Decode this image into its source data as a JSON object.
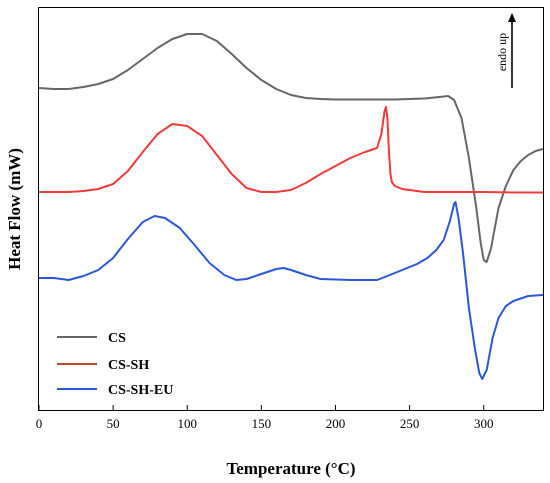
{
  "chart_data": {
    "type": "line",
    "title": "",
    "xlabel": "Temperature (°C)",
    "ylabel": "Heat Flow (mW)",
    "xlim": [
      0,
      340
    ],
    "xticks": [
      0,
      50,
      100,
      150,
      200,
      250,
      300
    ],
    "y_tick_labels_shown": false,
    "grid": false,
    "legend_position": "bottom-left",
    "annotation": "endo up",
    "series": [
      {
        "name": "CS",
        "color": "#666666",
        "points": [
          [
            0,
            80
          ],
          [
            10,
            81
          ],
          [
            20,
            81
          ],
          [
            30,
            79
          ],
          [
            40,
            76
          ],
          [
            50,
            71
          ],
          [
            60,
            62
          ],
          [
            70,
            51
          ],
          [
            80,
            40
          ],
          [
            90,
            31
          ],
          [
            100,
            26
          ],
          [
            110,
            26
          ],
          [
            120,
            33
          ],
          [
            130,
            46
          ],
          [
            140,
            60
          ],
          [
            150,
            72
          ],
          [
            160,
            81
          ],
          [
            170,
            87
          ],
          [
            180,
            90
          ],
          [
            190,
            91
          ],
          [
            200,
            91.5
          ],
          [
            220,
            91.5
          ],
          [
            240,
            91.5
          ],
          [
            260,
            90.5
          ],
          [
            270,
            89
          ],
          [
            276,
            88
          ],
          [
            280,
            92
          ],
          [
            285,
            110
          ],
          [
            290,
            150
          ],
          [
            295,
            200
          ],
          [
            298,
            235
          ],
          [
            300,
            252
          ],
          [
            302,
            254
          ],
          [
            305,
            240
          ],
          [
            310,
            200
          ],
          [
            315,
            178
          ],
          [
            320,
            162
          ],
          [
            325,
            153
          ],
          [
            330,
            147
          ],
          [
            335,
            143
          ],
          [
            340,
            141
          ]
        ]
      },
      {
        "name": "CS-SH",
        "color": "#ef3b3b",
        "points": [
          [
            0,
            184
          ],
          [
            10,
            184
          ],
          [
            20,
            184
          ],
          [
            30,
            183
          ],
          [
            40,
            181
          ],
          [
            50,
            176
          ],
          [
            60,
            163
          ],
          [
            70,
            144
          ],
          [
            80,
            126
          ],
          [
            90,
            116
          ],
          [
            100,
            118
          ],
          [
            110,
            128
          ],
          [
            120,
            147
          ],
          [
            130,
            166
          ],
          [
            140,
            180
          ],
          [
            150,
            184
          ],
          [
            160,
            184
          ],
          [
            170,
            182
          ],
          [
            180,
            175
          ],
          [
            190,
            166
          ],
          [
            200,
            158
          ],
          [
            210,
            150
          ],
          [
            220,
            144
          ],
          [
            228,
            140
          ],
          [
            231,
            126
          ],
          [
            233,
            104
          ],
          [
            234,
            99
          ],
          [
            235,
            110
          ],
          [
            236,
            140
          ],
          [
            237,
            165
          ],
          [
            238,
            174
          ],
          [
            240,
            178
          ],
          [
            245,
            181
          ],
          [
            260,
            184
          ],
          [
            280,
            184
          ],
          [
            300,
            184
          ],
          [
            320,
            184.5
          ],
          [
            340,
            184.5
          ]
        ]
      },
      {
        "name": "CS-SH-EU",
        "color": "#2a57d8",
        "points": [
          [
            0,
            270
          ],
          [
            10,
            270
          ],
          [
            20,
            272
          ],
          [
            30,
            268
          ],
          [
            40,
            262
          ],
          [
            50,
            250
          ],
          [
            60,
            231
          ],
          [
            70,
            214
          ],
          [
            78,
            208
          ],
          [
            85,
            210
          ],
          [
            95,
            220
          ],
          [
            105,
            237
          ],
          [
            115,
            255
          ],
          [
            125,
            267
          ],
          [
            133,
            272
          ],
          [
            140,
            271
          ],
          [
            150,
            266
          ],
          [
            160,
            261
          ],
          [
            165,
            260
          ],
          [
            170,
            262
          ],
          [
            180,
            267
          ],
          [
            190,
            271
          ],
          [
            200,
            271.5
          ],
          [
            210,
            272
          ],
          [
            220,
            272
          ],
          [
            228,
            272
          ],
          [
            235,
            268
          ],
          [
            245,
            262
          ],
          [
            255,
            256
          ],
          [
            262,
            250
          ],
          [
            268,
            242
          ],
          [
            273,
            232
          ],
          [
            277,
            214
          ],
          [
            280,
            196
          ],
          [
            281,
            194
          ],
          [
            283,
            210
          ],
          [
            286,
            245
          ],
          [
            290,
            300
          ],
          [
            294,
            340
          ],
          [
            297,
            365
          ],
          [
            299,
            371
          ],
          [
            302,
            362
          ],
          [
            306,
            330
          ],
          [
            310,
            310
          ],
          [
            315,
            298
          ],
          [
            320,
            293
          ],
          [
            330,
            288
          ],
          [
            340,
            287
          ]
        ]
      }
    ]
  },
  "legend": [
    {
      "label": "CS",
      "color": "#666666"
    },
    {
      "label": "CS-SH",
      "color": "#b44a32"
    },
    {
      "label": "CS-SH-EU",
      "color": "#2a57d8"
    }
  ]
}
